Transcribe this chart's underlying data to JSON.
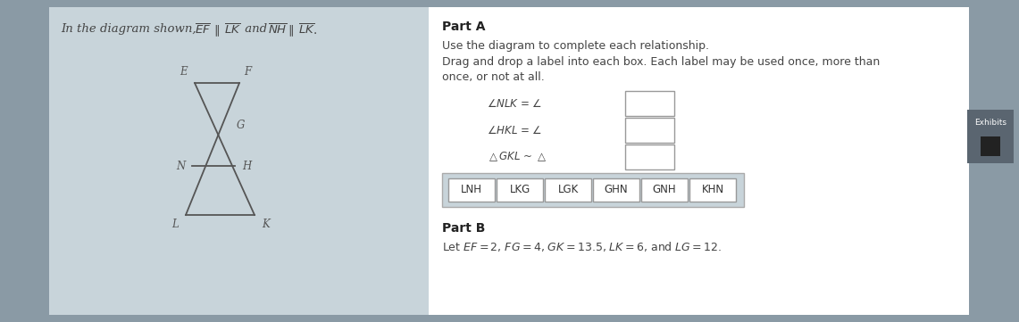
{
  "bg_outer": "#8a9aa5",
  "bg_panel": "#c8d4da",
  "bg_white": "#ffffff",
  "text_color": "#444444",
  "title_text": "In the diagram shown, ",
  "title_ef": "$\\overline{EF}$",
  "title_par1": "$\\parallel$",
  "title_lk1": "$\\overline{LK}$",
  "title_and": " and ",
  "title_nh": "$\\overline{NH}$",
  "title_par2": "$\\parallel$",
  "title_lk2": "$\\overline{LK}$.",
  "part_a_title": "Part A",
  "part_a_line1": "Use the diagram to complete each relationship.",
  "part_a_line2": "Drag and drop a label into each box. Each label may be used once, more than",
  "part_a_line3": "once, or not at all.",
  "eq1_left": "$\\angle NLK$ = $\\angle$",
  "eq2_left": "$\\angle HKL$ = $\\angle$",
  "eq3_left": "$\\triangle GKL$ ~ $\\triangle$",
  "labels": [
    "LNH",
    "LKG",
    "LGK",
    "GHN",
    "GNH",
    "KHN"
  ],
  "part_b_title": "Part B",
  "part_b_text": "Let $EF = 2$, $FG = 4$, $GK = 13.5$, $LK = 6$, and $LG = 12$.",
  "exhibits_label": "Exhibits",
  "line_color": "#555555",
  "box_edge_color": "#999999",
  "btn_bg": "#ffffff",
  "btn_container_bg": "#c8d4da",
  "exhibits_bg": "#5a6570"
}
